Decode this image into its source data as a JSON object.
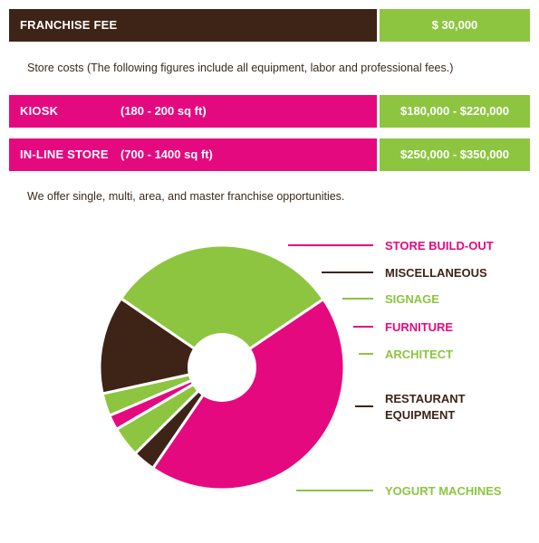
{
  "fee_row": {
    "label": "FRANCHISE FEE",
    "value": "$ 30,000"
  },
  "store_costs_note": "Store costs (The following figures include all equipment, labor and professional fees.)",
  "kiosk": {
    "name": "KIOSK",
    "size": "(180 - 200 sq ft)",
    "value": "$180,000 - $220,000"
  },
  "inline_store": {
    "name": "IN-LINE STORE",
    "size": "(700 - 1400 sq ft)",
    "value": "$250,000 - $350,000"
  },
  "offer_note": "We offer single, multi, area, and master franchise opportunities.",
  "colors": {
    "brown": "#3e2417",
    "green": "#8dc540",
    "pink": "#e5097f"
  },
  "chart_data": {
    "type": "pie",
    "donut": true,
    "slices": [
      {
        "label": "STORE BUILD-OUT",
        "value": 44,
        "color": "#e5097f"
      },
      {
        "label": "MISCELLANEOUS",
        "value": 3,
        "color": "#3e2417"
      },
      {
        "label": "SIGNAGE",
        "value": 4,
        "color": "#8dc540"
      },
      {
        "label": "FURNITURE",
        "value": 2,
        "color": "#e5097f"
      },
      {
        "label": "ARCHITECT",
        "value": 3,
        "color": "#8dc540"
      },
      {
        "label": "RESTAURANT EQUIPMENT",
        "value": 13,
        "color": "#3e2417"
      },
      {
        "label": "YOGURT MACHINES",
        "value": 31,
        "color": "#8dc540"
      }
    ]
  }
}
